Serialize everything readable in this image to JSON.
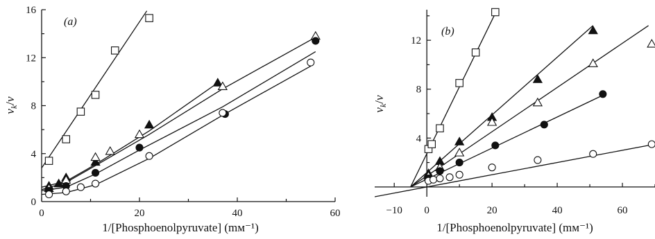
{
  "figure": {
    "panels": [
      {
        "label": "(a)",
        "ylabel_main": "v",
        "ylabel_sub1": "k",
        "ylabel_slash": "/",
        "ylabel_main2": "v",
        "xlabel": "1/[Phosphoenolpyruvate] (mм⁻¹)"
      },
      {
        "label": "(b)",
        "ylabel_main": "v",
        "ylabel_sub1": "k",
        "ylabel_slash": "/",
        "ylabel_main2": "v",
        "xlabel": "1/[Phosphoenolpyruvate] (mм⁻¹)"
      }
    ]
  },
  "chart_data": [
    {
      "type": "scatter",
      "panel": "(a)",
      "xlabel": "1/[Phosphoenolpyruvate] (mм⁻¹)",
      "ylabel": "vk/v",
      "xlim": [
        0,
        60
      ],
      "ylim": [
        0,
        16
      ],
      "xticks": [
        0,
        20,
        40,
        60
      ],
      "yticks": [
        4,
        8,
        12,
        16
      ],
      "grid": false,
      "series": [
        {
          "marker": "open-square",
          "points": [
            [
              1.5,
              3.4
            ],
            [
              5,
              5.2
            ],
            [
              8,
              7.5
            ],
            [
              11,
              8.9
            ],
            [
              15,
              12.6
            ],
            [
              22,
              15.3
            ]
          ],
          "fit": [
            [
              0,
              2.8
            ],
            [
              21.5,
              15.9
            ]
          ]
        },
        {
          "marker": "filled-triangle",
          "points": [
            [
              1.5,
              1.3
            ],
            [
              3.5,
              1.5
            ],
            [
              5,
              2.0
            ],
            [
              11,
              3.3
            ],
            [
              22,
              6.4
            ],
            [
              36,
              9.9
            ]
          ],
          "fit": [
            [
              0,
              1.2
            ],
            [
              5,
              1.7
            ],
            [
              11,
              3.1
            ],
            [
              22,
              5.9
            ],
            [
              36,
              9.9
            ]
          ]
        },
        {
          "marker": "open-triangle",
          "points": [
            [
              1.5,
              1.1
            ],
            [
              5,
              1.8
            ],
            [
              11,
              3.7
            ],
            [
              14,
              4.2
            ],
            [
              20,
              5.6
            ],
            [
              37,
              9.6
            ],
            [
              56,
              13.8
            ]
          ],
          "fit": [
            [
              0,
              1.0
            ],
            [
              5,
              1.6
            ],
            [
              11,
              3.0
            ],
            [
              22,
              5.6
            ],
            [
              37,
              9.4
            ],
            [
              56,
              13.7
            ]
          ]
        },
        {
          "marker": "filled-circle",
          "points": [
            [
              1.5,
              0.9
            ],
            [
              5,
              1.3
            ],
            [
              11,
              2.4
            ],
            [
              20,
              4.5
            ],
            [
              37.5,
              7.3
            ],
            [
              56,
              13.4
            ]
          ],
          "fit": [
            [
              0,
              0.9
            ],
            [
              5,
              1.2
            ],
            [
              11,
              2.3
            ],
            [
              20,
              4.3
            ],
            [
              37,
              7.9
            ],
            [
              56,
              12.5
            ]
          ]
        },
        {
          "marker": "open-circle",
          "points": [
            [
              1.5,
              0.6
            ],
            [
              5,
              0.85
            ],
            [
              8,
              1.2
            ],
            [
              11,
              1.5
            ],
            [
              22,
              3.8
            ],
            [
              37,
              7.4
            ],
            [
              55,
              11.6
            ]
          ],
          "fit": [
            [
              0,
              0.6
            ],
            [
              5,
              0.75
            ],
            [
              11,
              1.4
            ],
            [
              22,
              3.6
            ],
            [
              37,
              7.2
            ],
            [
              55,
              11.3
            ]
          ]
        }
      ]
    },
    {
      "type": "scatter",
      "panel": "(b)",
      "xlabel": "1/[Phosphoenolpyruvate] (mм⁻¹)",
      "ylabel": "vk/v",
      "xlim": [
        -16,
        70
      ],
      "ylim": [
        -0.8,
        14.5
      ],
      "xticks": [
        -10,
        0,
        20,
        40,
        60
      ],
      "yticks": [
        4,
        8,
        12
      ],
      "grid": false,
      "series": [
        {
          "marker": "open-square",
          "points": [
            [
              0.5,
              3.1
            ],
            [
              1.5,
              3.5
            ],
            [
              4,
              4.8
            ],
            [
              10,
              8.5
            ],
            [
              15,
              11.0
            ],
            [
              21,
              14.3
            ]
          ],
          "fit": [
            [
              -5,
              0
            ],
            [
              21,
              14.2
            ]
          ]
        },
        {
          "marker": "filled-triangle",
          "points": [
            [
              0.5,
              1.1
            ],
            [
              4,
              2.1
            ],
            [
              10,
              3.7
            ],
            [
              20,
              5.7
            ],
            [
              34,
              8.8
            ],
            [
              51,
              12.8
            ]
          ],
          "fit": [
            [
              -5,
              0
            ],
            [
              51,
              13.2
            ]
          ]
        },
        {
          "marker": "open-triangle",
          "points": [
            [
              0.5,
              0.9
            ],
            [
              4,
              1.6
            ],
            [
              10,
              2.8
            ],
            [
              20,
              5.3
            ],
            [
              34,
              6.9
            ],
            [
              51,
              10.1
            ],
            [
              69,
              11.7
            ]
          ],
          "fit": [
            [
              -5,
              0
            ],
            [
              68,
              13.2
            ]
          ]
        },
        {
          "marker": "filled-circle",
          "points": [
            [
              0.5,
              0.7
            ],
            [
              4,
              1.3
            ],
            [
              10,
              2.0
            ],
            [
              21,
              3.4
            ],
            [
              36,
              5.1
            ],
            [
              54,
              7.6
            ]
          ],
          "fit": [
            [
              -5,
              0
            ],
            [
              54,
              7.5
            ]
          ]
        },
        {
          "marker": "open-circle",
          "points": [
            [
              0.5,
              0.5
            ],
            [
              2,
              0.6
            ],
            [
              4,
              0.7
            ],
            [
              7,
              0.8
            ],
            [
              10,
              1.0
            ],
            [
              20,
              1.6
            ],
            [
              34,
              2.2
            ],
            [
              51,
              2.7
            ],
            [
              69,
              3.5
            ]
          ],
          "fit": [
            [
              -16,
              -0.8
            ],
            [
              70,
              3.5
            ]
          ]
        }
      ]
    }
  ]
}
